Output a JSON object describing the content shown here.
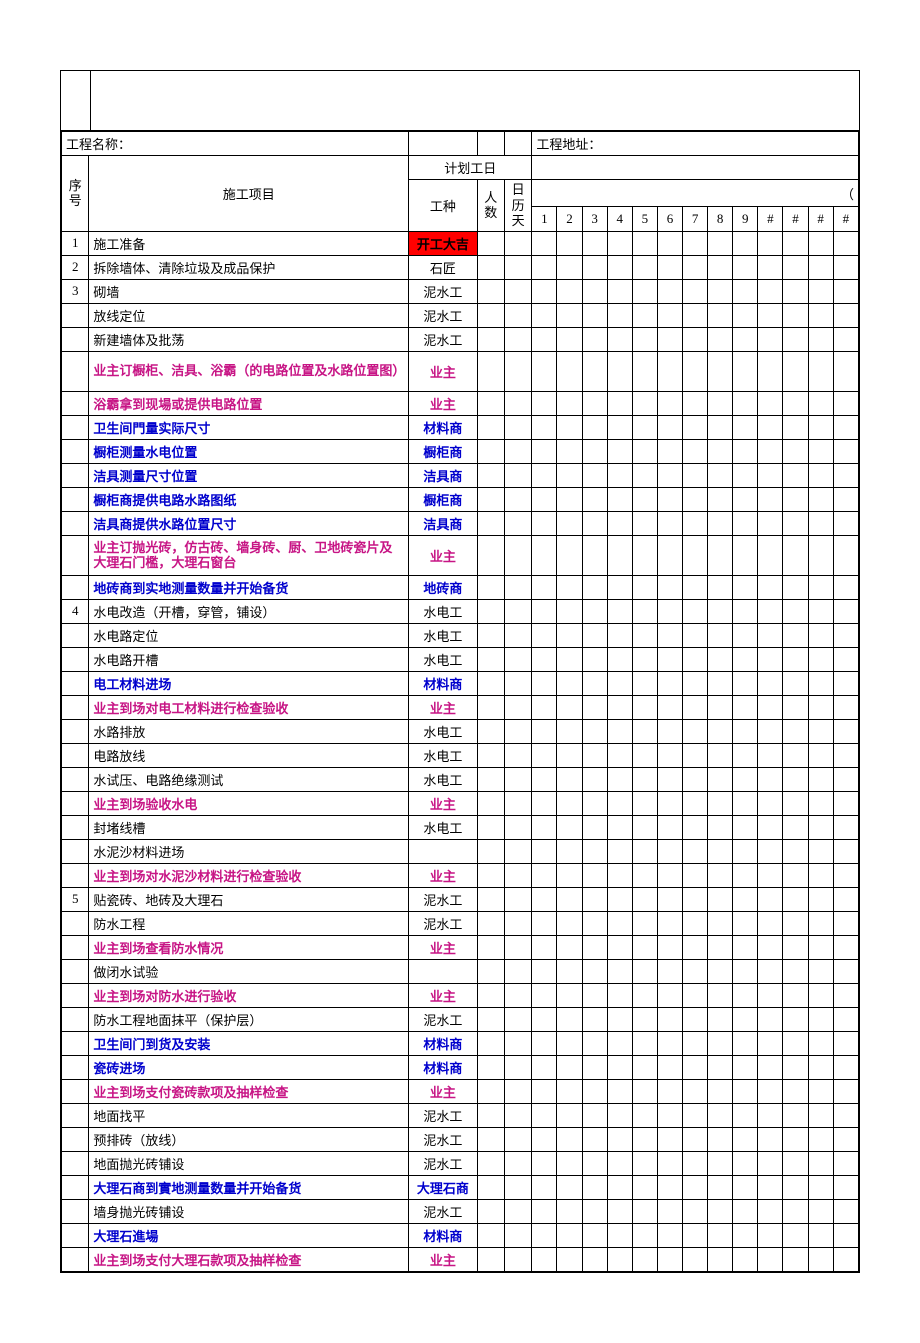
{
  "header": {
    "projectNameLabel": "工程名称：",
    "projectAddressLabel": "工程地址：",
    "seqLabel": "序号",
    "itemLabel": "施工项目",
    "planDaysLabel": "计划工日",
    "typeLabel": "工种",
    "peopleLabel": "人数",
    "calDaysLabel": "日历天",
    "dayNumbers": [
      "1",
      "2",
      "3",
      "4",
      "5",
      "6",
      "7",
      "8",
      "9",
      "#",
      "#",
      "#",
      "#"
    ]
  },
  "rows": [
    {
      "seq": "1",
      "item": "施工准备",
      "type": "开工大吉",
      "style": "redbg"
    },
    {
      "seq": "2",
      "item": "拆除墙体、清除垃圾及成品保护",
      "type": "石匠",
      "style": "normal"
    },
    {
      "seq": "3",
      "item": "砌墙",
      "type": "泥水工",
      "style": "normal"
    },
    {
      "seq": "",
      "item": "放线定位",
      "type": "泥水工",
      "style": "normal"
    },
    {
      "seq": "",
      "item": "新建墙体及批荡",
      "type": "泥水工",
      "style": "normal"
    },
    {
      "seq": "",
      "item": "业主订橱柜、洁具、浴霸（的电路位置及水路位置图）",
      "type": "业主",
      "style": "magenta",
      "twoLine": true
    },
    {
      "seq": "",
      "item": "浴霸拿到现場或提供电路位置",
      "type": "业主",
      "style": "magenta"
    },
    {
      "seq": "",
      "item": "卫生间門量实际尺寸",
      "type": "材料商",
      "style": "blue"
    },
    {
      "seq": "",
      "item": "橱柜测量水电位置",
      "type": "橱柜商",
      "style": "blue"
    },
    {
      "seq": "",
      "item": "洁具测量尺寸位置",
      "type": "洁具商",
      "style": "blue"
    },
    {
      "seq": "",
      "item": "橱柜商提供电路水路图纸",
      "type": "橱柜商",
      "style": "blue"
    },
    {
      "seq": "",
      "item": "洁具商提供水路位置尺寸",
      "type": "洁具商",
      "style": "blue"
    },
    {
      "seq": "",
      "item": "业主订抛光砖，仿古砖、墙身砖、厨、卫地砖瓷片及大理石门檻，大理石窗台",
      "type": "业主",
      "style": "magenta",
      "twoLine": true
    },
    {
      "seq": "",
      "item": "地砖商到实地测量数量并开始备货",
      "type": "地砖商",
      "style": "blue"
    },
    {
      "seq": "4",
      "item": "水电改造（开槽，穿管，铺设）",
      "type": "水电工",
      "style": "normal"
    },
    {
      "seq": "",
      "item": "水电路定位",
      "type": "水电工",
      "style": "normal"
    },
    {
      "seq": "",
      "item": "水电路开槽",
      "type": "水电工",
      "style": "normal"
    },
    {
      "seq": "",
      "item": "电工材料进场",
      "type": "材料商",
      "style": "blue"
    },
    {
      "seq": "",
      "item": "业主到场对电工材料进行检查验收",
      "type": "业主",
      "style": "magenta"
    },
    {
      "seq": "",
      "item": "水路排放",
      "type": "水电工",
      "style": "normal"
    },
    {
      "seq": "",
      "item": "电路放线",
      "type": "水电工",
      "style": "normal"
    },
    {
      "seq": "",
      "item": "水试压、电路绝缘测试",
      "type": "水电工",
      "style": "normal"
    },
    {
      "seq": "",
      "item": "业主到场验收水电",
      "type": "业主",
      "style": "magenta"
    },
    {
      "seq": "",
      "item": "封堵线槽",
      "type": "水电工",
      "style": "normal"
    },
    {
      "seq": "",
      "item": "水泥沙材料进场",
      "type": "",
      "style": "normal"
    },
    {
      "seq": "",
      "item": "业主到场对水泥沙材料进行检查验收",
      "type": "业主",
      "style": "magenta"
    },
    {
      "seq": "5",
      "item": "贴瓷砖、地砖及大理石",
      "type": "泥水工",
      "style": "normal"
    },
    {
      "seq": "",
      "item": "防水工程",
      "type": "泥水工",
      "style": "normal"
    },
    {
      "seq": "",
      "item": "业主到场查看防水情况",
      "type": "业主",
      "style": "magenta"
    },
    {
      "seq": "",
      "item": "做闭水试验",
      "type": "",
      "style": "normal"
    },
    {
      "seq": "",
      "item": "业主到场对防水进行验收",
      "type": "业主",
      "style": "magenta"
    },
    {
      "seq": "",
      "item": "防水工程地面抹平（保护层）",
      "type": "泥水工",
      "style": "normal"
    },
    {
      "seq": "",
      "item": "卫生间门到货及安装",
      "type": "材料商",
      "style": "blue"
    },
    {
      "seq": "",
      "item": "瓷砖进场",
      "type": "材料商",
      "style": "blue"
    },
    {
      "seq": "",
      "item": "业主到场支付瓷砖款项及抽样检查",
      "type": "业主",
      "style": "magenta"
    },
    {
      "seq": "",
      "item": "地面找平",
      "type": "泥水工",
      "style": "normal"
    },
    {
      "seq": "",
      "item": "预排砖（放线）",
      "type": "泥水工",
      "style": "normal"
    },
    {
      "seq": "",
      "item": "地面抛光砖铺设",
      "type": "泥水工",
      "style": "normal"
    },
    {
      "seq": "",
      "item": "大理石商到實地测量数量并开始备货",
      "type": "大理石商",
      "style": "blue"
    },
    {
      "seq": "",
      "item": "墙身抛光砖铺设",
      "type": "泥水工",
      "style": "normal"
    },
    {
      "seq": "",
      "item": "大理石進場",
      "type": "材料商",
      "style": "blue"
    },
    {
      "seq": "",
      "item": "业主到场支付大理石款项及抽样检查",
      "type": "业主",
      "style": "magenta"
    }
  ],
  "watermarkImg": "",
  "colors": {
    "red_bg": "#ff0000",
    "magenta": "#c71585",
    "blue": "#0000cd",
    "black": "#000000"
  }
}
